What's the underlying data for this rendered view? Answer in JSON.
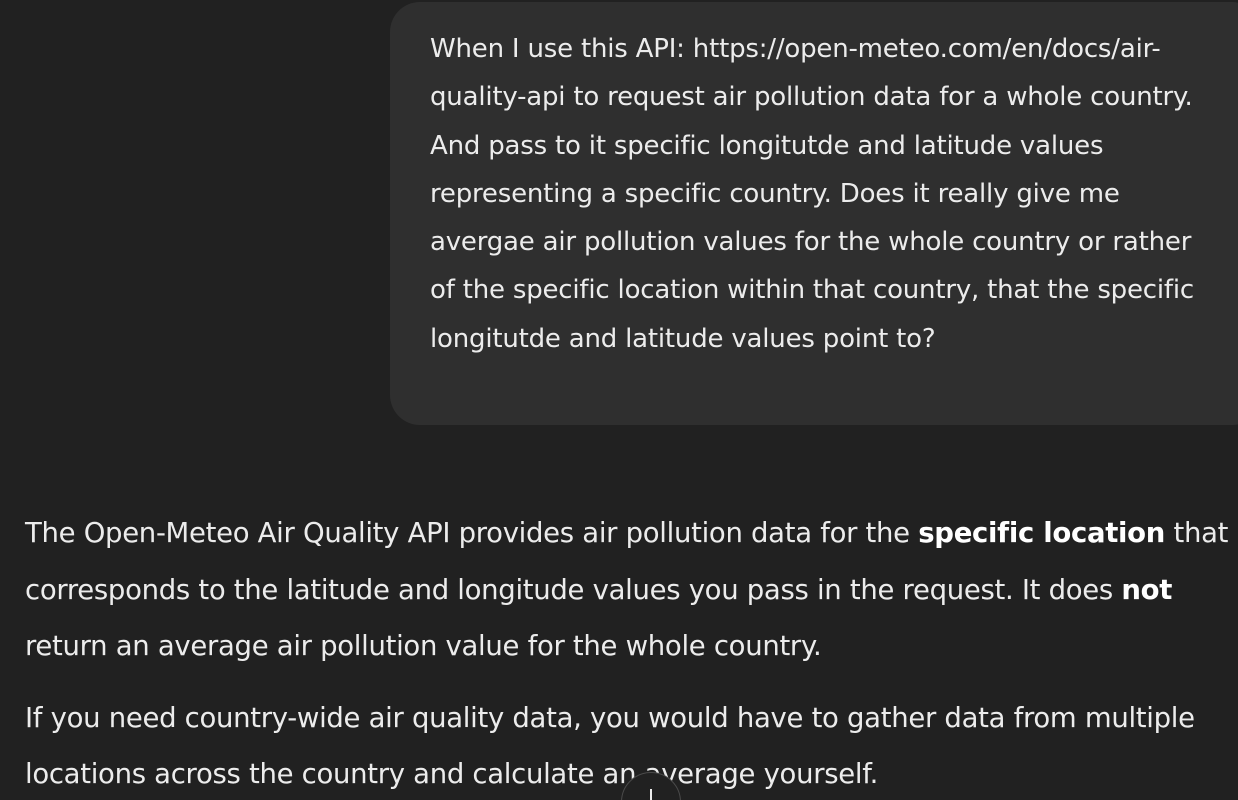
{
  "user_message": {
    "text": "When I use this API: https://open-meteo.com/en/docs/air-quality-api to request air pollution data for a whole country. And pass to it specific longitutde and latitude values representing a specific country. Does it really give me avergae air pollution values for the whole country or rather of the specific location within that country, that the specific longitutde and latitude values point to?"
  },
  "assistant_message": {
    "paragraph_1": {
      "part_1": "The Open-Meteo Air Quality API provides air pollution data for the ",
      "bold_1": "specific location",
      "part_2": " that corresponds to the latitude and longitude values you pass in the request. It does ",
      "bold_2": "not",
      "part_3": " return an average air pollution value for the whole country."
    },
    "paragraph_2": "If you need country-wide air quality data, you would have to gather data from multiple locations across the country and calculate an average yourself."
  },
  "scroll_button": {
    "icon": "arrow-down-icon"
  }
}
